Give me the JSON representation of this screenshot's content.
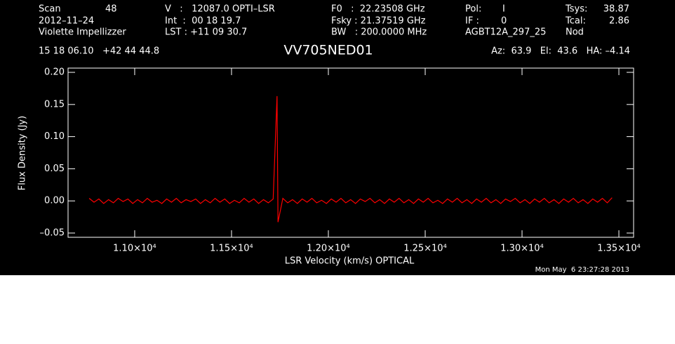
{
  "header": {
    "rows": [
      [
        "Scan",
        "48",
        "V   :   12087.0 OPTI–LSR",
        "F0   :  22.23508 GHz",
        "Pol:",
        "I",
        "Tsys:",
        "38.87"
      ],
      [
        "2012–11–24",
        "Int  :  00 18 19.7",
        "Fsky : 21.37519 GHz",
        "IF :",
        "0",
        "Tcal:",
        "2.86"
      ],
      [
        "Violette Impellizzer",
        "LST : +11 09 30.7",
        "BW   : 200.0000 MHz",
        "AGBT12A_297_25",
        "Nod"
      ]
    ],
    "position": "15 18 06.10   +42 44 44.8",
    "pointing": "Az:  63.9   El:  43.6   HA: –4.14"
  },
  "footer": "Mon May  6 23:27:28 2013",
  "chart_data": {
    "type": "line",
    "title": "VV705NED01",
    "x_label": "LSR Velocity (km/s) OPTICAL",
    "y_label": "Flux Density (Jy)",
    "xlim": [
      10656,
      13576
    ],
    "ylim": [
      -0.0566,
      0.2066
    ],
    "xticks": [
      {
        "value": 11000,
        "label": "1.10×10⁴"
      },
      {
        "value": 11500,
        "label": "1.15×10⁴"
      },
      {
        "value": 12000,
        "label": "1.20×10⁴"
      },
      {
        "value": 12500,
        "label": "1.25×10⁴"
      },
      {
        "value": 13000,
        "label": "1.30×10⁴"
      },
      {
        "value": 13500,
        "label": "1.35×10⁴"
      }
    ],
    "yticks": [
      {
        "value": -0.05,
        "label": "–0.05"
      },
      {
        "value": 0,
        "label": "0.00"
      },
      0.05,
      {
        "value": 0.1,
        "label": "0.10"
      },
      0.15,
      {
        "value": 0.2,
        "label": "0.20"
      }
    ],
    "series": [
      {
        "color": "#ff0000",
        "x": [
          10765,
          10790,
          10815,
          10840,
          10865,
          10890,
          10915,
          10940,
          10965,
          10990,
          11015,
          11040,
          11065,
          11090,
          11115,
          11140,
          11165,
          11190,
          11215,
          11240,
          11265,
          11290,
          11315,
          11340,
          11365,
          11390,
          11415,
          11440,
          11465,
          11490,
          11515,
          11540,
          11565,
          11590,
          11615,
          11640,
          11665,
          11690,
          11715,
          11735,
          11740,
          11765,
          11790,
          11815,
          11840,
          11865,
          11890,
          11915,
          11940,
          11965,
          11990,
          12015,
          12040,
          12065,
          12090,
          12115,
          12140,
          12165,
          12190,
          12215,
          12240,
          12265,
          12290,
          12315,
          12340,
          12365,
          12390,
          12415,
          12440,
          12465,
          12490,
          12515,
          12540,
          12565,
          12590,
          12615,
          12640,
          12665,
          12690,
          12715,
          12740,
          12765,
          12790,
          12815,
          12840,
          12865,
          12890,
          12915,
          12940,
          12965,
          12990,
          13015,
          13040,
          13065,
          13090,
          13115,
          13140,
          13165,
          13190,
          13215,
          13240,
          13265,
          13290,
          13315,
          13340,
          13365,
          13390,
          13415,
          13440,
          13465
        ],
        "values": [
          0.004,
          -0.002,
          0.003,
          -0.004,
          0.002,
          -0.003,
          0.004,
          -0.001,
          0.003,
          -0.004,
          0.002,
          -0.003,
          0.004,
          -0.002,
          0.001,
          -0.004,
          0.003,
          -0.002,
          0.004,
          -0.003,
          0.002,
          -0.001,
          0.003,
          -0.004,
          0.002,
          -0.003,
          0.004,
          -0.002,
          0.003,
          -0.004,
          0.001,
          -0.003,
          0.004,
          -0.002,
          0.003,
          -0.004,
          0.002,
          -0.003,
          0.003,
          0.163,
          -0.033,
          0.004,
          -0.003,
          0.002,
          -0.004,
          0.003,
          -0.002,
          0.004,
          -0.003,
          0.001,
          -0.004,
          0.003,
          -0.002,
          0.004,
          -0.003,
          0.002,
          -0.004,
          0.003,
          -0.001,
          0.004,
          -0.003,
          0.002,
          -0.004,
          0.003,
          -0.002,
          0.004,
          -0.003,
          0.002,
          -0.004,
          0.003,
          -0.002,
          0.004,
          -0.003,
          0.001,
          -0.004,
          0.003,
          -0.002,
          0.004,
          -0.003,
          0.002,
          -0.004,
          0.003,
          -0.002,
          0.004,
          -0.003,
          0.002,
          -0.004,
          0.003,
          -0.001,
          0.004,
          -0.003,
          0.002,
          -0.004,
          0.003,
          -0.002,
          0.004,
          -0.003,
          0.002,
          -0.004,
          0.003,
          -0.002,
          0.004,
          -0.003,
          0.002,
          -0.004,
          0.003,
          -0.002,
          0.004,
          -0.003,
          0.005
        ]
      }
    ]
  }
}
